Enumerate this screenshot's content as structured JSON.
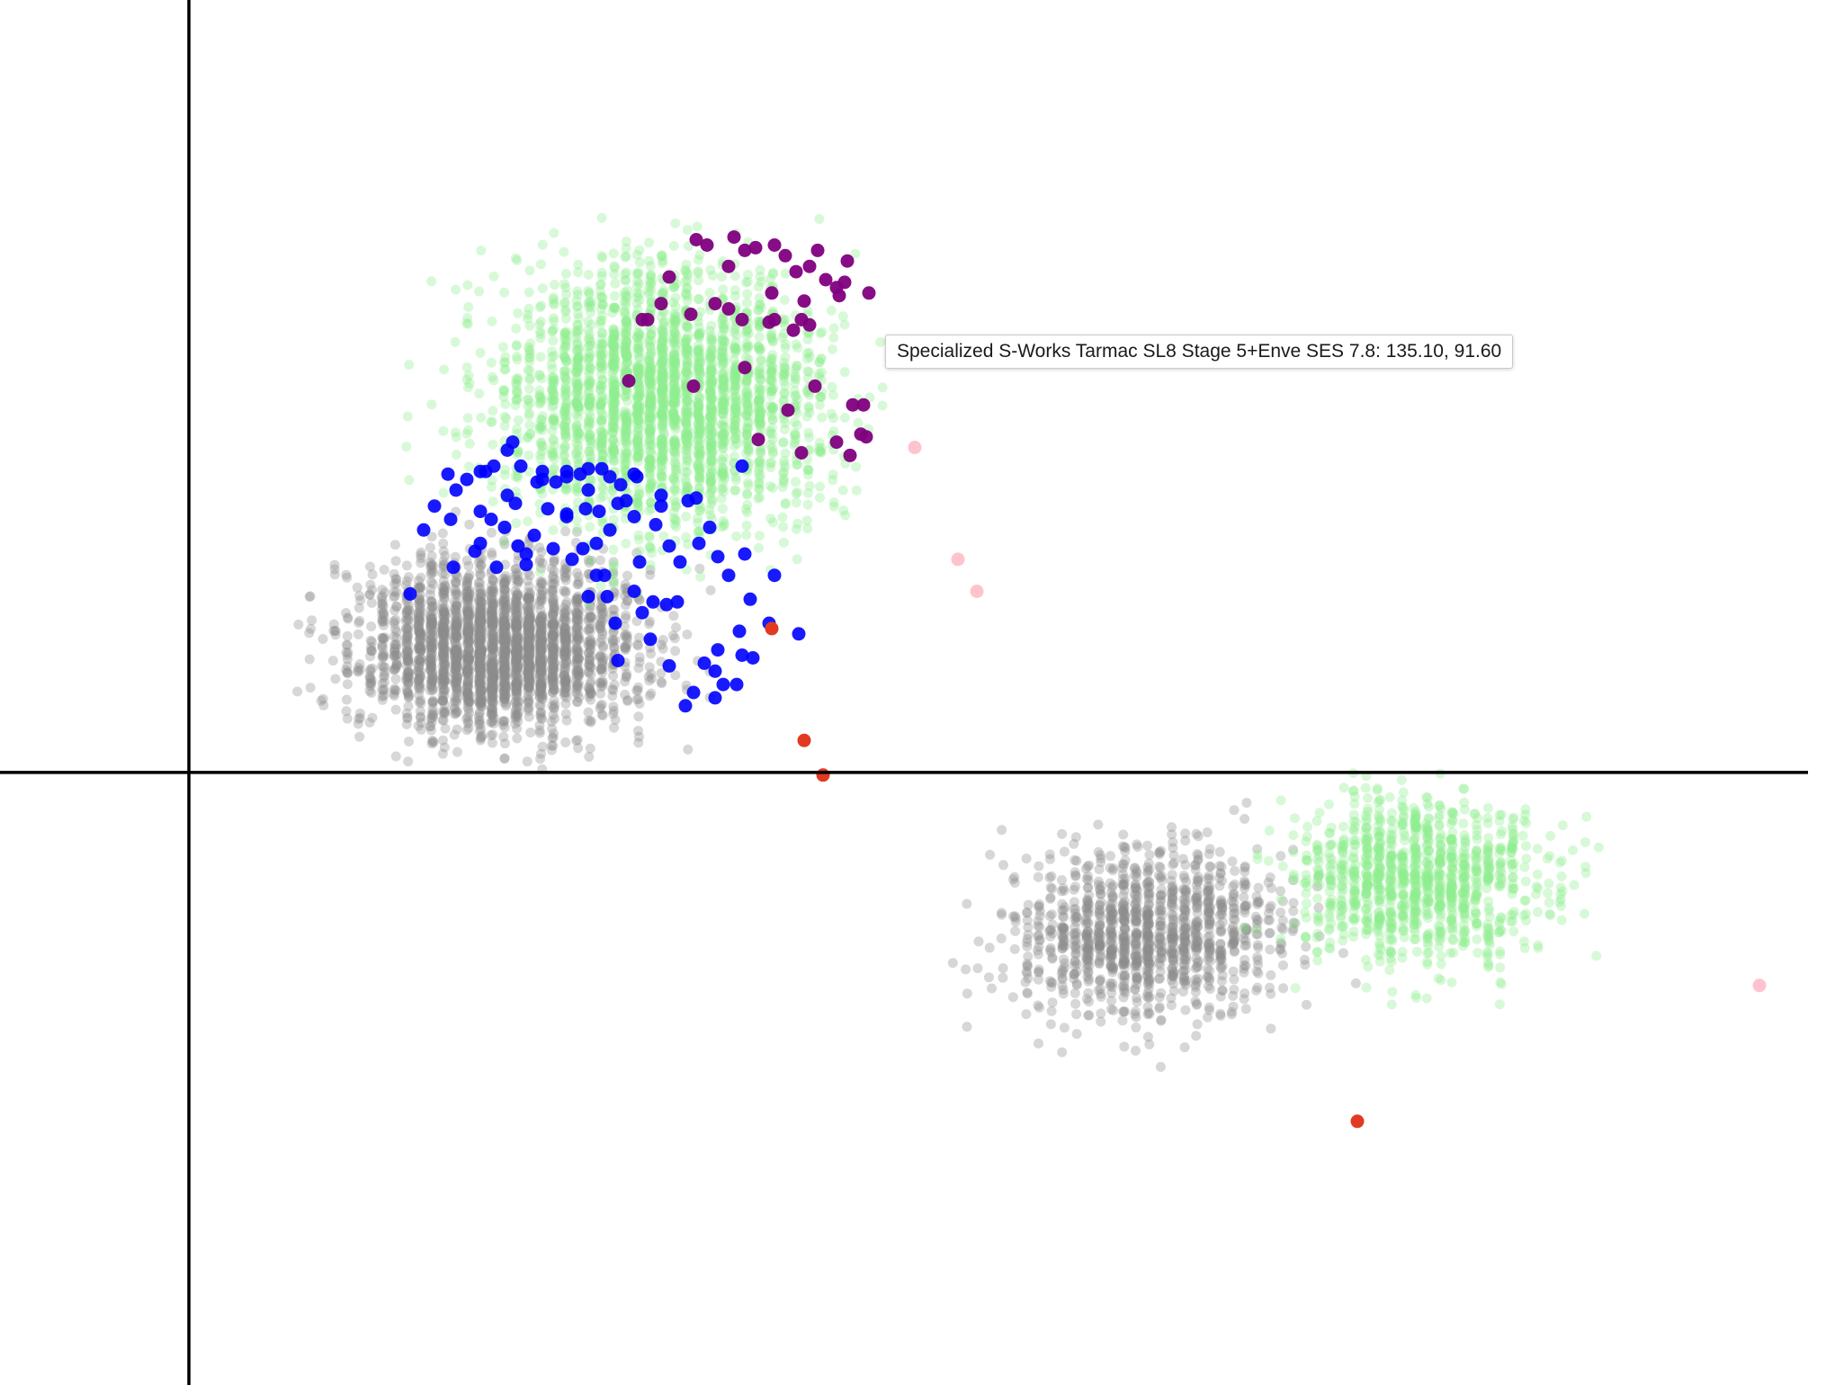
{
  "chart_data": {
    "type": "scatter",
    "title": "",
    "xlabel": "",
    "ylabel": "",
    "xlim": [
      -70,
      600
    ],
    "ylim": [
      -230,
      290
    ],
    "grid": false,
    "axes": {
      "x_axis_at_y": 0,
      "y_axis_at_x": 0
    },
    "series": [
      {
        "color": "#8c8c8c",
        "alpha": 0.35,
        "clusters": [
          {
            "cx": 115,
            "cy": 47,
            "sx": 65,
            "sy": 40,
            "n": 2600
          },
          {
            "cx": 355,
            "cy": -60,
            "sx": 62,
            "sy": 40,
            "n": 1200
          }
        ]
      },
      {
        "color": "#90ee90",
        "alpha": 0.35,
        "clusters": [
          {
            "cx": 175,
            "cy": 140,
            "sx": 75,
            "sy": 60,
            "n": 2600
          },
          {
            "cx": 455,
            "cy": -40,
            "sx": 60,
            "sy": 38,
            "n": 1100
          }
        ]
      },
      {
        "color": "#800080",
        "alpha": 0.95,
        "points": [
          [
            170,
            170
          ],
          [
            178,
            186
          ],
          [
            188,
            200
          ],
          [
            192,
            198
          ],
          [
            200,
            190
          ],
          [
            202,
            201
          ],
          [
            206,
            196
          ],
          [
            210,
            197
          ],
          [
            217,
            198
          ],
          [
            221,
            194
          ],
          [
            225,
            188
          ],
          [
            230,
            190
          ],
          [
            236,
            185
          ],
          [
            240,
            182
          ],
          [
            243,
            184
          ],
          [
            252,
            180
          ],
          [
            175,
            176
          ],
          [
            186,
            172
          ],
          [
            195,
            176
          ],
          [
            200,
            174
          ],
          [
            205,
            170
          ],
          [
            215,
            169
          ],
          [
            217,
            170
          ],
          [
            224,
            166
          ],
          [
            227,
            170
          ],
          [
            230,
            168
          ],
          [
            241,
            179
          ],
          [
            244,
            192
          ],
          [
            168,
            170
          ],
          [
            163,
            147
          ],
          [
            187,
            145
          ],
          [
            206,
            152
          ],
          [
            222,
            136
          ],
          [
            232,
            145
          ],
          [
            240,
            124
          ],
          [
            250,
            138
          ],
          [
            251,
            126
          ],
          [
            245,
            119
          ],
          [
            249,
            127
          ],
          [
            211,
            125
          ],
          [
            227,
            120
          ],
          [
            246,
            138
          ],
          [
            233,
            196
          ],
          [
            216,
            180
          ],
          [
            228,
            177
          ]
        ]
      },
      {
        "color": "#0000ff",
        "alpha": 0.9,
        "points": [
          [
            129,
            109
          ],
          [
            136,
            109
          ],
          [
            140,
            111
          ],
          [
            153,
            114
          ],
          [
            156,
            111
          ],
          [
            148,
            114
          ],
          [
            145,
            112
          ],
          [
            140,
            113
          ],
          [
            160,
            108
          ],
          [
            166,
            111
          ],
          [
            131,
            113
          ],
          [
            118,
            121
          ],
          [
            108,
            113
          ],
          [
            118,
            104
          ],
          [
            133,
            99
          ],
          [
            140,
            97
          ],
          [
            147,
            99
          ],
          [
            148,
            106
          ],
          [
            152,
            98
          ],
          [
            162,
            102
          ],
          [
            159,
            101
          ],
          [
            175,
            100
          ],
          [
            185,
            102
          ],
          [
            156,
            91
          ],
          [
            151,
            86
          ],
          [
            165,
            96
          ],
          [
            165,
            112
          ],
          [
            188,
            103
          ],
          [
            175,
            104
          ],
          [
            205,
            115
          ],
          [
            110,
            113
          ],
          [
            120,
            124
          ],
          [
            108,
            98
          ],
          [
            112,
            95
          ],
          [
            117,
            92
          ],
          [
            128,
            89
          ],
          [
            135,
            84
          ],
          [
            125,
            82
          ],
          [
            122,
            85
          ],
          [
            108,
            86
          ],
          [
            106,
            83
          ],
          [
            98,
            77
          ],
          [
            97,
            95
          ],
          [
            87,
            91
          ],
          [
            99,
            106
          ],
          [
            103,
            110
          ],
          [
            91,
            100
          ],
          [
            96,
            112
          ],
          [
            113,
            115
          ],
          [
            123,
            115
          ],
          [
            121,
            101
          ],
          [
            131,
            110
          ],
          [
            82,
            67
          ],
          [
            158,
            56
          ],
          [
            168,
            60
          ],
          [
            215,
            56
          ],
          [
            204,
            53
          ],
          [
            205,
            44
          ],
          [
            191,
            41
          ],
          [
            195,
            38
          ],
          [
            178,
            40
          ],
          [
            195,
            28
          ],
          [
            198,
            33
          ],
          [
            203,
            33
          ],
          [
            184,
            25
          ],
          [
            151,
            74
          ],
          [
            146,
            84
          ],
          [
            142,
            80
          ],
          [
            114,
            77
          ],
          [
            125,
            78
          ],
          [
            140,
            96
          ],
          [
            154,
            74
          ],
          [
            178,
            85
          ],
          [
            200,
            74
          ],
          [
            206,
            82
          ],
          [
            193,
            92
          ],
          [
            173,
            93
          ],
          [
            167,
            79
          ],
          [
            172,
            64
          ],
          [
            217,
            74
          ],
          [
            208,
            65
          ],
          [
            226,
            52
          ],
          [
            209,
            43
          ],
          [
            187,
            30
          ],
          [
            196,
            46
          ],
          [
            159,
            42
          ],
          [
            171,
            50
          ],
          [
            177,
            63
          ],
          [
            165,
            68
          ],
          [
            155,
            66
          ],
          [
            148,
            66
          ],
          [
            181,
            64
          ],
          [
            182,
            79
          ],
          [
            189,
            86
          ],
          [
            196,
            81
          ]
        ]
      },
      {
        "color": "#ffc0cb",
        "alpha": 0.95,
        "points": [
          [
            269,
            122
          ],
          [
            285,
            80
          ],
          [
            292,
            68
          ],
          [
            582,
            -80
          ]
        ]
      },
      {
        "color": "#e23a22",
        "alpha": 1.0,
        "points": [
          [
            216,
            54
          ],
          [
            228,
            12
          ],
          [
            235,
            -1
          ],
          [
            433,
            -131
          ]
        ]
      }
    ],
    "tooltip": "Specialized S-Works Tarmac SL8 Stage 5+Enve SES 7.8: 135.10, 91.60"
  }
}
